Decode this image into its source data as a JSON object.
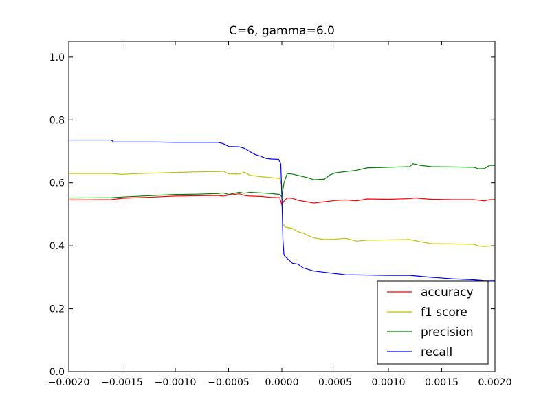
{
  "chart_data": {
    "type": "line",
    "title": "C=6, gamma=6.0",
    "xlabel": "",
    "ylabel": "",
    "xlim": [
      -0.002,
      0.002
    ],
    "ylim": [
      0.0,
      1.05
    ],
    "xticks": [
      -0.002,
      -0.0015,
      -0.001,
      -0.0005,
      0.0,
      0.0005,
      0.001,
      0.0015,
      0.002
    ],
    "xtick_labels": [
      "−0.0020",
      "−0.0015",
      "−0.0010",
      "−0.0005",
      "0.0000",
      "0.0005",
      "0.0010",
      "0.0015",
      "0.0020"
    ],
    "yticks": [
      0.0,
      0.2,
      0.4,
      0.6,
      0.8,
      1.0
    ],
    "ytick_labels": [
      "0.0",
      "0.2",
      "0.4",
      "0.6",
      "0.8",
      "1.0"
    ],
    "grid": false,
    "legend_position": "lower-right",
    "series": [
      {
        "name": "accuracy",
        "color": "#ff0000",
        "points": [
          [
            -0.002,
            0.546
          ],
          [
            -0.0016,
            0.547
          ],
          [
            -0.0015,
            0.551
          ],
          [
            -0.0012,
            0.555
          ],
          [
            -0.001,
            0.558
          ],
          [
            -0.0008,
            0.559
          ],
          [
            -0.0006,
            0.56
          ],
          [
            -0.00055,
            0.558
          ],
          [
            -0.0005,
            0.561
          ],
          [
            -0.0004,
            0.565
          ],
          [
            -0.00035,
            0.56
          ],
          [
            -0.0003,
            0.558
          ],
          [
            -0.0002,
            0.557
          ],
          [
            -0.0001,
            0.554
          ],
          [
            -2e-05,
            0.553
          ],
          [
            0.0,
            0.53
          ],
          [
            2e-05,
            0.542
          ],
          [
            5e-05,
            0.552
          ],
          [
            0.0001,
            0.551
          ],
          [
            0.00015,
            0.545
          ],
          [
            0.0002,
            0.542
          ],
          [
            0.0003,
            0.536
          ],
          [
            0.0004,
            0.54
          ],
          [
            0.0005,
            0.544
          ],
          [
            0.0006,
            0.546
          ],
          [
            0.0007,
            0.543
          ],
          [
            0.0008,
            0.549
          ],
          [
            0.001,
            0.548
          ],
          [
            0.0012,
            0.55
          ],
          [
            0.00125,
            0.552
          ],
          [
            0.0014,
            0.548
          ],
          [
            0.0016,
            0.547
          ],
          [
            0.0018,
            0.547
          ],
          [
            0.0019,
            0.543
          ],
          [
            0.00195,
            0.547
          ],
          [
            0.002,
            0.547
          ]
        ]
      },
      {
        "name": "f1 score",
        "color": "#bfbf00",
        "points": [
          [
            -0.002,
            0.63
          ],
          [
            -0.0016,
            0.63
          ],
          [
            -0.0015,
            0.627
          ],
          [
            -0.0014,
            0.629
          ],
          [
            -0.0012,
            0.631
          ],
          [
            -0.001,
            0.633
          ],
          [
            -0.0008,
            0.635
          ],
          [
            -0.0006,
            0.636
          ],
          [
            -0.00055,
            0.637
          ],
          [
            -0.0005,
            0.629
          ],
          [
            -0.0004,
            0.628
          ],
          [
            -0.00035,
            0.634
          ],
          [
            -0.0003,
            0.624
          ],
          [
            -0.0002,
            0.62
          ],
          [
            -0.0001,
            0.617
          ],
          [
            -2e-05,
            0.614
          ],
          [
            0.0,
            0.59
          ],
          [
            1e-05,
            0.47
          ],
          [
            3e-05,
            0.46
          ],
          [
            0.0001,
            0.455
          ],
          [
            0.00015,
            0.445
          ],
          [
            0.0002,
            0.44
          ],
          [
            0.00025,
            0.432
          ],
          [
            0.0003,
            0.425
          ],
          [
            0.0004,
            0.42
          ],
          [
            0.0005,
            0.421
          ],
          [
            0.0006,
            0.424
          ],
          [
            0.0007,
            0.415
          ],
          [
            0.0008,
            0.418
          ],
          [
            0.001,
            0.419
          ],
          [
            0.0012,
            0.42
          ],
          [
            0.0013,
            0.413
          ],
          [
            0.0014,
            0.407
          ],
          [
            0.0016,
            0.406
          ],
          [
            0.0018,
            0.405
          ],
          [
            0.00185,
            0.399
          ],
          [
            0.0019,
            0.398
          ],
          [
            0.002,
            0.4
          ]
        ]
      },
      {
        "name": "precision",
        "color": "#008000",
        "points": [
          [
            -0.002,
            0.552
          ],
          [
            -0.0016,
            0.553
          ],
          [
            -0.0015,
            0.555
          ],
          [
            -0.0012,
            0.56
          ],
          [
            -0.001,
            0.563
          ],
          [
            -0.0008,
            0.564
          ],
          [
            -0.0006,
            0.566
          ],
          [
            -0.00055,
            0.568
          ],
          [
            -0.0005,
            0.563
          ],
          [
            -0.0004,
            0.57
          ],
          [
            -0.00035,
            0.567
          ],
          [
            -0.0003,
            0.57
          ],
          [
            -0.0002,
            0.568
          ],
          [
            -0.0001,
            0.566
          ],
          [
            -2e-05,
            0.563
          ],
          [
            0.0,
            0.556
          ],
          [
            2e-05,
            0.6
          ],
          [
            5e-05,
            0.63
          ],
          [
            0.0001,
            0.628
          ],
          [
            0.00015,
            0.624
          ],
          [
            0.0002,
            0.62
          ],
          [
            0.00025,
            0.616
          ],
          [
            0.0003,
            0.61
          ],
          [
            0.0004,
            0.612
          ],
          [
            0.00045,
            0.625
          ],
          [
            0.0005,
            0.632
          ],
          [
            0.0006,
            0.636
          ],
          [
            0.0007,
            0.64
          ],
          [
            0.0008,
            0.648
          ],
          [
            0.001,
            0.65
          ],
          [
            0.0012,
            0.652
          ],
          [
            0.00123,
            0.661
          ],
          [
            0.0013,
            0.656
          ],
          [
            0.0014,
            0.652
          ],
          [
            0.0016,
            0.651
          ],
          [
            0.0018,
            0.65
          ],
          [
            0.00185,
            0.645
          ],
          [
            0.0019,
            0.646
          ],
          [
            0.00195,
            0.656
          ],
          [
            0.002,
            0.656
          ]
        ]
      },
      {
        "name": "recall",
        "color": "#0000ff",
        "points": [
          [
            -0.002,
            0.736
          ],
          [
            -0.0016,
            0.736
          ],
          [
            -0.00158,
            0.73
          ],
          [
            -0.0012,
            0.73
          ],
          [
            -0.001,
            0.729
          ],
          [
            -0.0006,
            0.729
          ],
          [
            -0.00055,
            0.725
          ],
          [
            -0.0005,
            0.716
          ],
          [
            -0.0004,
            0.715
          ],
          [
            -0.00035,
            0.71
          ],
          [
            -0.0003,
            0.699
          ],
          [
            -0.00025,
            0.69
          ],
          [
            -0.0002,
            0.685
          ],
          [
            -0.00015,
            0.678
          ],
          [
            -0.0001,
            0.676
          ],
          [
            -3e-05,
            0.675
          ],
          [
            -1e-05,
            0.66
          ],
          [
            0.0,
            0.56
          ],
          [
            1e-05,
            0.42
          ],
          [
            2e-05,
            0.37
          ],
          [
            5e-05,
            0.36
          ],
          [
            0.0001,
            0.345
          ],
          [
            0.00015,
            0.342
          ],
          [
            0.0002,
            0.33
          ],
          [
            0.0003,
            0.32
          ],
          [
            0.0004,
            0.316
          ],
          [
            0.0005,
            0.312
          ],
          [
            0.0006,
            0.308
          ],
          [
            0.0008,
            0.307
          ],
          [
            0.001,
            0.306
          ],
          [
            0.0012,
            0.306
          ],
          [
            0.0014,
            0.3
          ],
          [
            0.0016,
            0.295
          ],
          [
            0.0018,
            0.292
          ],
          [
            0.0019,
            0.289
          ],
          [
            0.002,
            0.289
          ]
        ]
      }
    ]
  }
}
